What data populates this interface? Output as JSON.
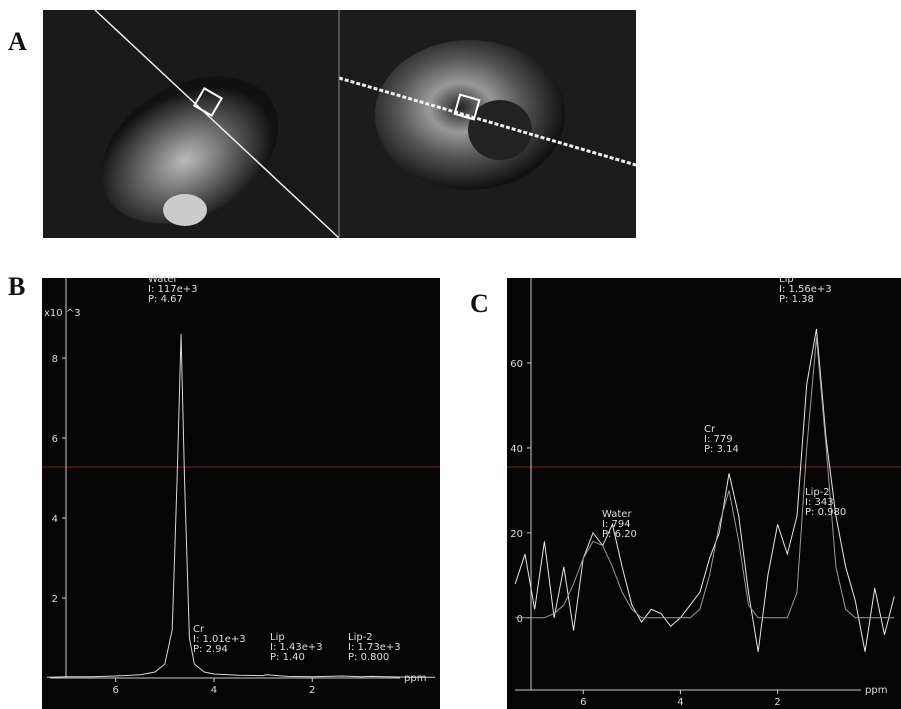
{
  "figure": {
    "panel_labels": [
      "A",
      "B",
      "C"
    ]
  },
  "chart_data": [
    {
      "type": "line",
      "x_label": "ppm",
      "y_label": "x10 ^3",
      "x": [
        7.4,
        7.0,
        6.5,
        6.0,
        5.5,
        5.2,
        5.0,
        4.85,
        4.75,
        4.67,
        4.6,
        4.5,
        4.4,
        4.2,
        4.0,
        3.5,
        3.0,
        2.94,
        2.5,
        2.0,
        1.4,
        1.0,
        0.8,
        0.0,
        -0.5
      ],
      "series": [
        {
          "color": "#d8d8d8",
          "values": [
            0.02,
            0.03,
            0.03,
            0.05,
            0.08,
            0.15,
            0.35,
            1.2,
            5,
            8.6,
            5,
            1.0,
            0.35,
            0.15,
            0.1,
            0.07,
            0.06,
            0.08,
            0.04,
            0.03,
            0.05,
            0.03,
            0.04,
            0.02,
            0.02
          ]
        }
      ],
      "xlim": [
        7.5,
        -0.6
      ],
      "xticks": [
        6,
        4,
        2
      ],
      "ylim": [
        0,
        10
      ],
      "yticks": [
        2,
        4,
        6,
        8
      ],
      "annotations": [
        {
          "name": "Water",
          "lines": [
            "I: 117e+3",
            "P: 4.67"
          ]
        },
        {
          "name": "Cr",
          "lines": [
            "I: 1.01e+3",
            "P: 2.94"
          ]
        },
        {
          "name": "Lip",
          "lines": [
            "I: 1.43e+3",
            "P: 1.40"
          ]
        },
        {
          "name": "Lip-2",
          "lines": [
            "I: 1.73e+3",
            "P: 0.800"
          ]
        }
      ]
    },
    {
      "type": "line",
      "x_label": "ppm",
      "x": [
        7.4,
        7.2,
        7.0,
        6.8,
        6.6,
        6.4,
        6.2,
        6.0,
        5.8,
        5.6,
        5.4,
        5.2,
        5.0,
        4.8,
        4.6,
        4.4,
        4.2,
        4.0,
        3.8,
        3.6,
        3.4,
        3.2,
        3.0,
        2.8,
        2.6,
        2.4,
        2.2,
        2.0,
        1.8,
        1.6,
        1.4,
        1.2,
        1.0,
        0.8,
        0.6,
        0.4,
        0.2,
        0.0,
        -0.2,
        -0.4
      ],
      "series": [
        {
          "color": "#e6e6e6",
          "values": [
            8,
            15,
            2,
            18,
            0,
            12,
            -3,
            14,
            20,
            17,
            22,
            12,
            3,
            -1,
            2,
            1,
            -2,
            0,
            3,
            6,
            14,
            20,
            34,
            24,
            6,
            -8,
            10,
            22,
            15,
            24,
            55,
            68,
            42,
            24,
            12,
            4,
            -8,
            7,
            -4,
            5
          ]
        },
        {
          "color": "#9a9a9a",
          "values": [
            0,
            0,
            0,
            0,
            1,
            3,
            8,
            14,
            18,
            17,
            12,
            6,
            2,
            0,
            0,
            0,
            0,
            0,
            0,
            2,
            10,
            22,
            30,
            18,
            3,
            0,
            0,
            0,
            0,
            6,
            40,
            66,
            40,
            12,
            2,
            0,
            0,
            0,
            0,
            0
          ]
        }
      ],
      "xlim": [
        7.57,
        -0.54
      ],
      "xticks": [
        6,
        4,
        2
      ],
      "ylim": [
        -17,
        80
      ],
      "yticks": [
        0,
        20,
        40,
        60
      ],
      "annotations": [
        {
          "name": "Lip",
          "lines": [
            "I: 1.56e+3",
            "P: 1.38"
          ]
        },
        {
          "name": "Cr",
          "lines": [
            "I: 779",
            "P: 3.14"
          ]
        },
        {
          "name": "Water",
          "lines": [
            "I: 794",
            "P: 6.20"
          ]
        },
        {
          "name": "Lip-2",
          "lines": [
            "I: 343",
            "P: 0.980"
          ]
        }
      ]
    }
  ]
}
